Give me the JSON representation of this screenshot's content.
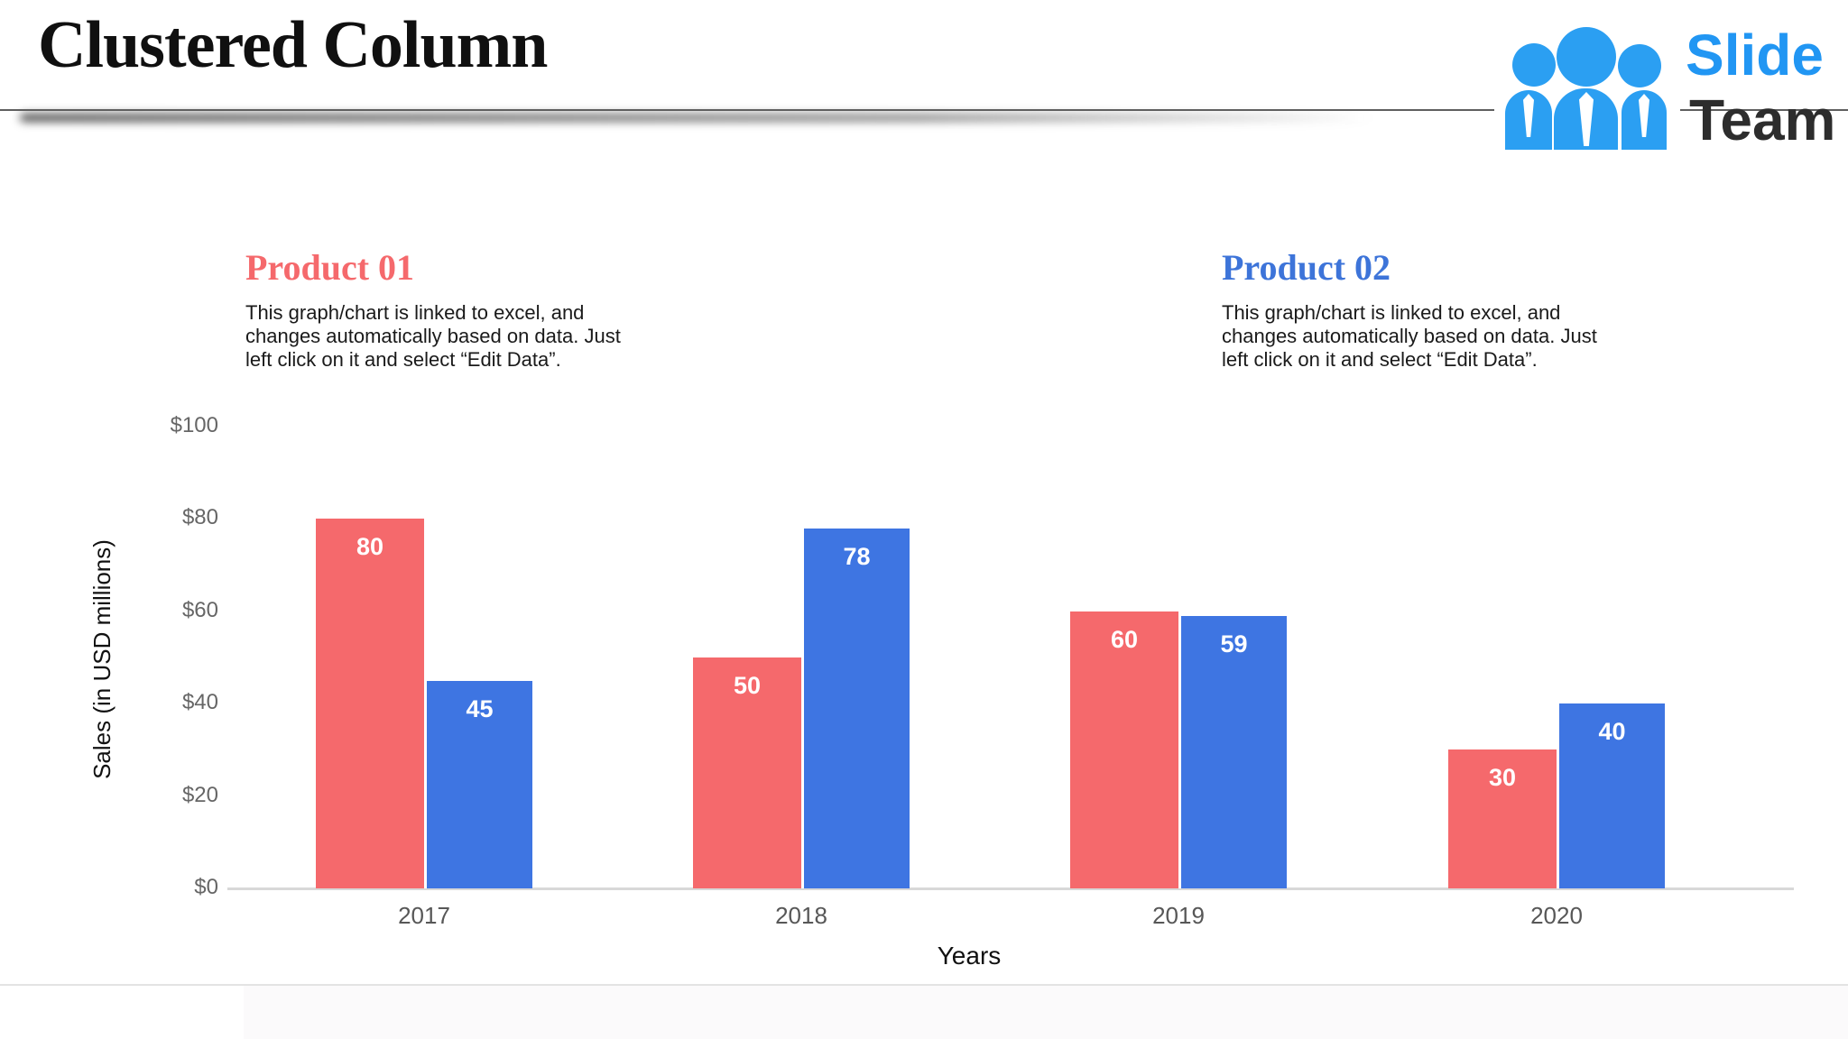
{
  "slide": {
    "title": "Clustered Column"
  },
  "logo": {
    "slide_label": "Slide",
    "team_label": "Team",
    "people_icon_color": "#2B9FF2",
    "slide_color": "#2196F3",
    "team_color": "#2D2D2D"
  },
  "sections": {
    "product1": {
      "title": "Product 01",
      "title_color": "#F5696C",
      "description": "This graph/chart is linked to excel, and\nchanges automatically based on data. Just\nleft click on it and select “Edit Data”."
    },
    "product2": {
      "title": "Product 02",
      "title_color": "#3D74D9",
      "description": "This graph/chart is linked to excel, and\nchanges automatically based on data. Just\nleft click on it and select “Edit Data”."
    }
  },
  "chart_data": {
    "type": "bar",
    "categories": [
      "2017",
      "2018",
      "2019",
      "2020"
    ],
    "series": [
      {
        "name": "Product 01",
        "color": "#F5696C",
        "values": [
          80,
          50,
          60,
          30
        ]
      },
      {
        "name": "Product 02",
        "color": "#3E75E2",
        "values": [
          45,
          78,
          59,
          40
        ]
      }
    ],
    "title": "",
    "xlabel": "Years",
    "ylabel": "Sales (in USD millions)",
    "ylim": [
      0,
      100
    ],
    "yticks": [
      0,
      20,
      40,
      60,
      80,
      100
    ],
    "ytick_labels": [
      "$0",
      "$20",
      "$40",
      "$60",
      "$80",
      "$100"
    ],
    "grid": false,
    "legend_position": "none",
    "value_labels": "inside top, white bold"
  }
}
